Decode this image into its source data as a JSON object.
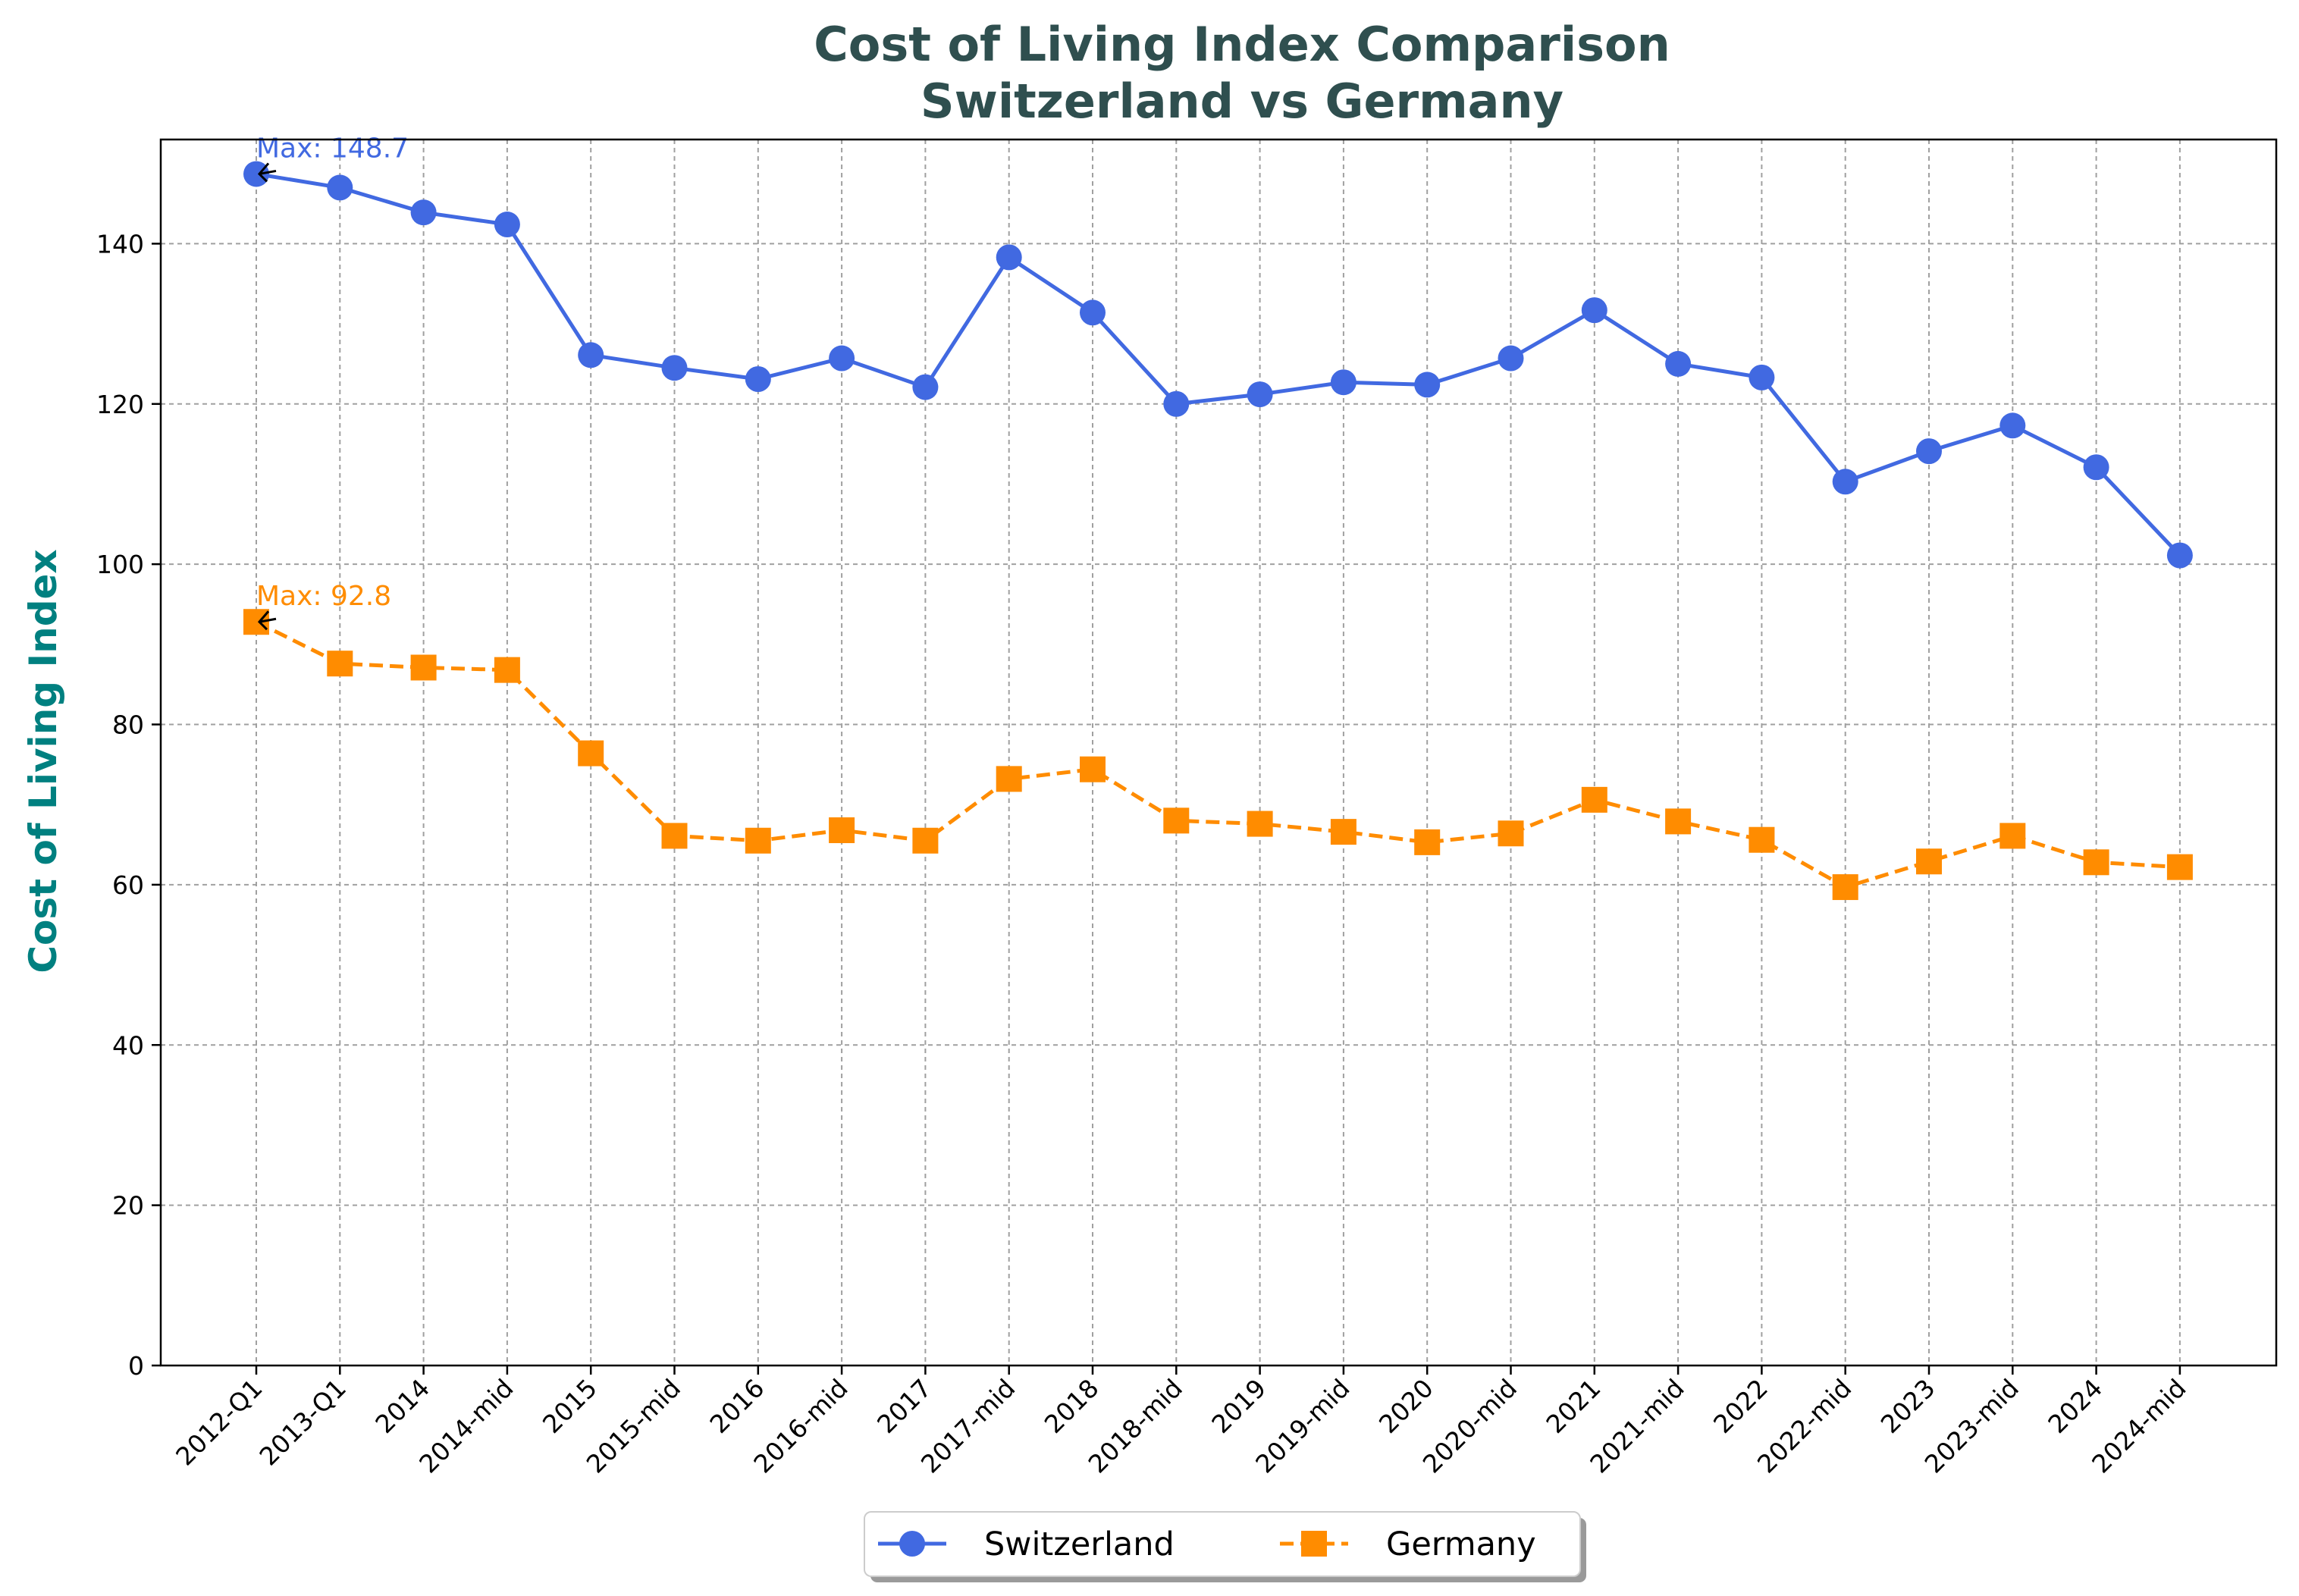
{
  "chart_data": {
    "type": "line",
    "title_line1": "Cost of Living Index Comparison",
    "title_line2": "Switzerland vs Germany",
    "xlabel": "",
    "ylabel": "Cost of Living Index",
    "ylim": [
      0,
      153
    ],
    "yticks": [
      0,
      20,
      40,
      60,
      80,
      100,
      120,
      140
    ],
    "grid": true,
    "legend_position": "bottom-center",
    "categories": [
      "2012-Q1",
      "2013-Q1",
      "2014",
      "2014-mid",
      "2015",
      "2015-mid",
      "2016",
      "2016-mid",
      "2017",
      "2017-mid",
      "2018",
      "2018-mid",
      "2019",
      "2019-mid",
      "2020",
      "2020-mid",
      "2021",
      "2021-mid",
      "2022",
      "2022-mid",
      "2023",
      "2023-mid",
      "2024",
      "2024-mid"
    ],
    "series": [
      {
        "name": "Switzerland",
        "color": "#4169E1",
        "marker": "circle",
        "linestyle": "solid",
        "values": [
          148.7,
          147.0,
          143.9,
          142.4,
          126.1,
          124.5,
          123.1,
          125.7,
          122.1,
          138.3,
          131.4,
          120.0,
          121.2,
          122.7,
          122.4,
          125.7,
          131.7,
          125.0,
          123.3,
          110.3,
          114.1,
          117.3,
          112.1,
          101.1
        ],
        "annotation": "Max: 148.7"
      },
      {
        "name": "Germany",
        "color": "#FF8C00",
        "marker": "square",
        "linestyle": "dashed",
        "values": [
          92.8,
          87.6,
          87.1,
          86.8,
          76.4,
          66.1,
          65.5,
          66.8,
          65.5,
          73.2,
          74.4,
          68.0,
          67.6,
          66.6,
          65.3,
          66.4,
          70.6,
          67.9,
          65.6,
          59.7,
          62.9,
          66.1,
          62.8,
          62.2
        ],
        "annotation": "Max: 92.8"
      }
    ]
  }
}
